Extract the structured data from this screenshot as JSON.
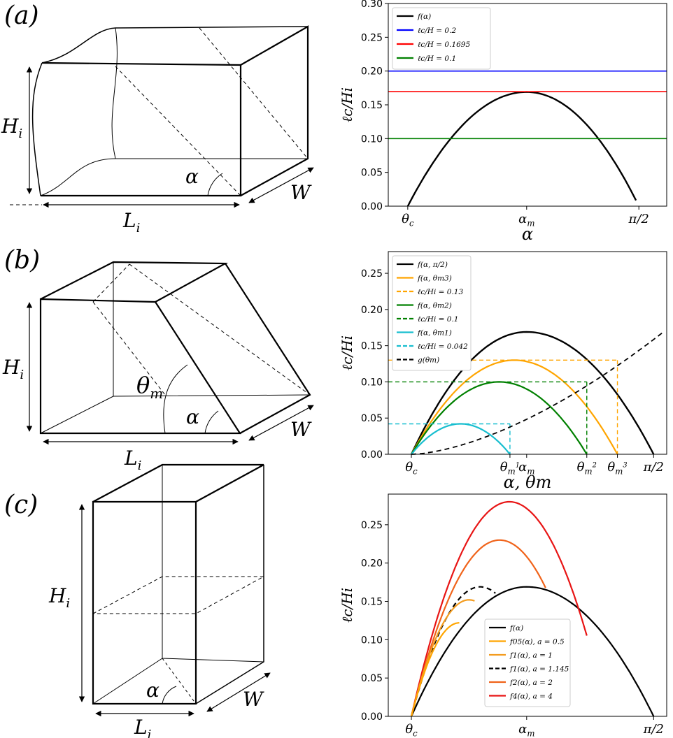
{
  "panels": [
    {
      "label": "(a)"
    },
    {
      "label": "(b)"
    },
    {
      "label": "(c)"
    }
  ],
  "geometry_labels": {
    "a": {
      "height": "H",
      "height_sub": "i",
      "length": "L",
      "length_sub": "i",
      "width": "W",
      "angle": "α"
    },
    "b": {
      "height": "H",
      "height_sub": "i",
      "length": "L",
      "length_sub": "i",
      "width": "W",
      "angle": "α",
      "theta": "θ",
      "theta_sub": "m"
    },
    "c": {
      "height": "H",
      "height_sub": "i",
      "length": "L",
      "length_sub": "i",
      "width": "W",
      "angle": "α"
    }
  },
  "chart_data": [
    {
      "type": "line",
      "panel": "(a)",
      "xlabel": "α",
      "ylabel": "ℓc/Hi",
      "xticks": [
        "θc",
        "αm",
        "π/2"
      ],
      "yticks": [
        "0.00",
        "0.05",
        "0.10",
        "0.15",
        "0.20",
        "0.25",
        "0.30"
      ],
      "ylim": [
        0,
        0.3
      ],
      "legend_position": "top-left",
      "series": [
        {
          "name": "f(α)",
          "color": "#000000",
          "style": "solid",
          "shape": "parabola",
          "peak": 0.169
        },
        {
          "name": "ℓc/H = 0.2",
          "color": "#0000ff",
          "style": "solid",
          "y": 0.2
        },
        {
          "name": "ℓc/H = 0.1695",
          "color": "#ff0000",
          "style": "solid",
          "y": 0.1695
        },
        {
          "name": "ℓc/H = 0.1",
          "color": "#008000",
          "style": "solid",
          "y": 0.1
        }
      ]
    },
    {
      "type": "line",
      "panel": "(b)",
      "xlabel": "α, θm",
      "ylabel": "ℓc/Hi",
      "xticks": [
        "θc",
        "θm1",
        "αm",
        "θm2",
        "θm3",
        "π/2"
      ],
      "yticks": [
        "0.00",
        "0.05",
        "0.10",
        "0.15",
        "0.20",
        "0.25"
      ],
      "ylim": [
        0,
        0.28
      ],
      "legend_position": "top-left",
      "series": [
        {
          "name": "f(α, π/2)",
          "color": "#000000",
          "style": "solid",
          "peak": 0.169
        },
        {
          "name": "f(α, θm3)",
          "color": "#ffa500",
          "style": "solid",
          "peak": 0.13
        },
        {
          "name": "ℓc/Hi = 0.13",
          "color": "#ffa500",
          "style": "dashed",
          "y": 0.13
        },
        {
          "name": "f(α, θm2)",
          "color": "#008000",
          "style": "solid",
          "peak": 0.1
        },
        {
          "name": "ℓc/Hi = 0.1",
          "color": "#008000",
          "style": "dashed",
          "y": 0.1
        },
        {
          "name": "f(α, θm1)",
          "color": "#17becf",
          "style": "solid",
          "peak": 0.042
        },
        {
          "name": "ℓc/Hi = 0.042",
          "color": "#17becf",
          "style": "dashed",
          "y": 0.042
        },
        {
          "name": "g(θm)",
          "color": "#000000",
          "style": "dashed"
        }
      ]
    },
    {
      "type": "line",
      "panel": "(c)",
      "xlabel": "α",
      "ylabel": "ℓc/Hi",
      "xticks": [
        "θc",
        "αm",
        "π/2"
      ],
      "yticks": [
        "0.00",
        "0.05",
        "0.10",
        "0.15",
        "0.20",
        "0.25"
      ],
      "ylim": [
        0,
        0.29
      ],
      "legend_position": "lower-center",
      "series": [
        {
          "name": "f(α)",
          "color": "#000000",
          "style": "solid",
          "peak": 0.169
        },
        {
          "name": "f05(α), a = 0.5",
          "color": "#ffa500",
          "style": "solid",
          "end_y": 0.122
        },
        {
          "name": "f1(α), a = 1",
          "color": "#f39c1f",
          "style": "solid",
          "end_y": 0.152
        },
        {
          "name": "f1(α), a = 1.145",
          "color": "#000000",
          "style": "dashed",
          "peak": 0.169
        },
        {
          "name": "f2(α), a = 2",
          "color": "#f0631a",
          "style": "solid",
          "peak": 0.23
        },
        {
          "name": "f4(α), a = 4",
          "color": "#e81515",
          "style": "solid",
          "peak": 0.28
        }
      ]
    }
  ]
}
